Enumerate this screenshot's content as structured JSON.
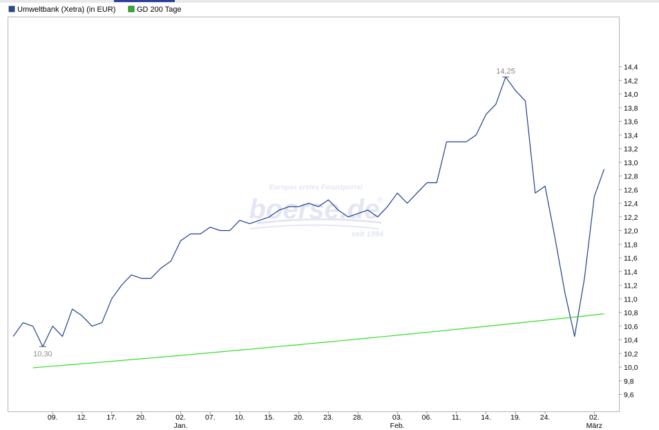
{
  "chart_data": {
    "type": "line",
    "legend_position": "top-left",
    "y_axis_side": "right",
    "grid": false,
    "ylim": [
      9.5,
      14.5
    ],
    "yticks": [
      "9,6",
      "9,8",
      "10,0",
      "10,2",
      "10,4",
      "10,6",
      "10,8",
      "11,0",
      "11,2",
      "11,4",
      "11,6",
      "11,8",
      "12,0",
      "12,2",
      "12,4",
      "12,6",
      "12,8",
      "13,0",
      "13,2",
      "13,4",
      "13,6",
      "13,8",
      "14,0",
      "14,2",
      "14,4"
    ],
    "x_ticks": [
      {
        "day": "09.",
        "month": "",
        "x": 4
      },
      {
        "day": "12.",
        "month": "",
        "x": 7
      },
      {
        "day": "17.",
        "month": "",
        "x": 10
      },
      {
        "day": "20.",
        "month": "",
        "x": 13
      },
      {
        "day": "02.",
        "month": "Jan.",
        "x": 17
      },
      {
        "day": "07.",
        "month": "",
        "x": 20
      },
      {
        "day": "10.",
        "month": "",
        "x": 23
      },
      {
        "day": "15.",
        "month": "",
        "x": 26
      },
      {
        "day": "20.",
        "month": "",
        "x": 29
      },
      {
        "day": "23.",
        "month": "",
        "x": 32
      },
      {
        "day": "28.",
        "month": "",
        "x": 35
      },
      {
        "day": "03.",
        "month": "Feb.",
        "x": 39
      },
      {
        "day": "06.",
        "month": "",
        "x": 42
      },
      {
        "day": "11.",
        "month": "",
        "x": 45
      },
      {
        "day": "14.",
        "month": "",
        "x": 48
      },
      {
        "day": "19.",
        "month": "",
        "x": 51
      },
      {
        "day": "24.",
        "month": "",
        "x": 54
      },
      {
        "day": "02.",
        "month": "März",
        "x": 59
      }
    ],
    "x_range": [
      -0.5,
      61.5
    ],
    "series": [
      {
        "name": "Umweltbank (Xetra) (in EUR)",
        "color": "#1e3f8c",
        "legend_swatch": "#1f4a9e",
        "values": [
          10.45,
          10.65,
          10.6,
          10.3,
          10.6,
          10.45,
          10.85,
          10.75,
          10.6,
          10.65,
          11.0,
          11.2,
          11.35,
          11.3,
          11.3,
          11.45,
          11.55,
          11.85,
          11.95,
          11.95,
          12.05,
          12.0,
          12.0,
          12.15,
          12.1,
          12.15,
          12.2,
          12.3,
          12.35,
          12.35,
          12.4,
          12.35,
          12.45,
          12.3,
          12.2,
          12.25,
          12.3,
          12.2,
          12.35,
          12.55,
          12.4,
          12.55,
          12.7,
          12.7,
          13.3,
          13.3,
          13.3,
          13.4,
          13.7,
          13.85,
          14.25,
          14.05,
          13.9,
          12.55,
          12.65,
          11.9,
          11.1,
          10.45,
          11.3,
          12.5,
          12.9
        ]
      },
      {
        "name": "GD 200 Tage",
        "color": "#33dd22",
        "legend_swatch": "#22bb22",
        "start_index": 2,
        "start_value": 9.99,
        "end_value": 10.78
      }
    ],
    "annotations": [
      {
        "label": "14,25",
        "x": 50,
        "value": 14.25,
        "position": "above"
      },
      {
        "label": "10,30",
        "x": 3,
        "value": 10.3,
        "position": "below"
      }
    ]
  },
  "watermark": {
    "tagline": "Europas erstes Finanzportal",
    "logo": "boerse.de",
    "since": "seit 1994"
  }
}
